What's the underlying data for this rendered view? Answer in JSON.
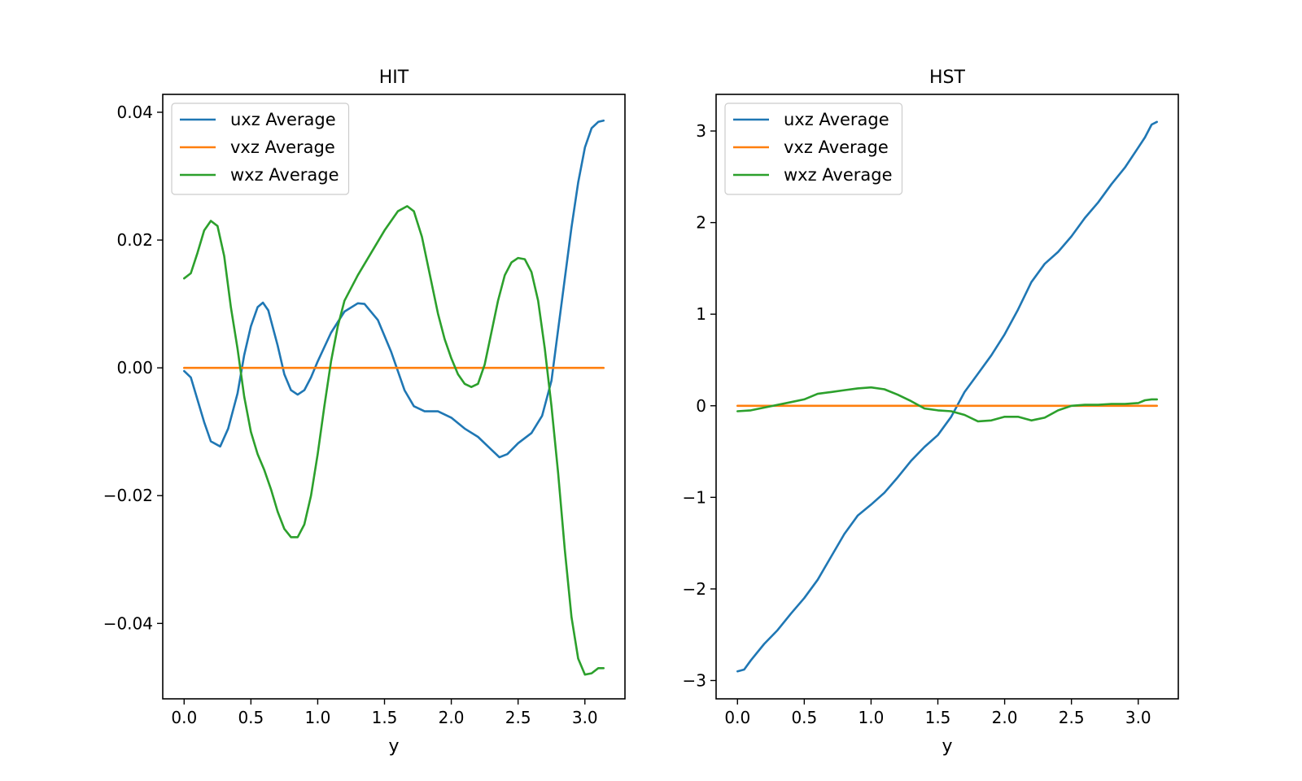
{
  "chart_data": [
    {
      "type": "line",
      "title": "HIT",
      "xlabel": "y",
      "ylabel": "",
      "xlim": [
        -0.16,
        3.3
      ],
      "ylim": [
        -0.0518,
        0.0428
      ],
      "xticks": [
        {
          "value": 0.0,
          "label": "0.0"
        },
        {
          "value": 0.5,
          "label": "0.5"
        },
        {
          "value": 1.0,
          "label": "1.0"
        },
        {
          "value": 1.5,
          "label": "1.5"
        },
        {
          "value": 2.0,
          "label": "2.0"
        },
        {
          "value": 2.5,
          "label": "2.5"
        },
        {
          "value": 3.0,
          "label": "3.0"
        }
      ],
      "yticks": [
        {
          "value": -0.04,
          "label": "−0.04"
        },
        {
          "value": -0.02,
          "label": "−0.02"
        },
        {
          "value": 0.0,
          "label": "0.00"
        },
        {
          "value": 0.02,
          "label": "0.02"
        },
        {
          "value": 0.04,
          "label": "0.04"
        }
      ],
      "legend_position": "top-left",
      "grid": false,
      "series": [
        {
          "name": "uxz Average",
          "color": "#1f77b4",
          "points": [
            [
              0.0,
              -0.0005
            ],
            [
              0.05,
              -0.0015
            ],
            [
              0.1,
              -0.005
            ],
            [
              0.15,
              -0.0085
            ],
            [
              0.2,
              -0.0115
            ],
            [
              0.27,
              -0.0123
            ],
            [
              0.33,
              -0.0095
            ],
            [
              0.4,
              -0.004
            ],
            [
              0.45,
              0.002
            ],
            [
              0.5,
              0.0065
            ],
            [
              0.55,
              0.0095
            ],
            [
              0.59,
              0.0102
            ],
            [
              0.63,
              0.009
            ],
            [
              0.7,
              0.0035
            ],
            [
              0.75,
              -0.001
            ],
            [
              0.8,
              -0.0035
            ],
            [
              0.85,
              -0.0042
            ],
            [
              0.9,
              -0.0035
            ],
            [
              0.95,
              -0.0015
            ],
            [
              1.0,
              0.001
            ],
            [
              1.1,
              0.0055
            ],
            [
              1.2,
              0.0088
            ],
            [
              1.3,
              0.0101
            ],
            [
              1.35,
              0.01
            ],
            [
              1.45,
              0.0075
            ],
            [
              1.55,
              0.0025
            ],
            [
              1.6,
              -0.0005
            ],
            [
              1.65,
              -0.0035
            ],
            [
              1.72,
              -0.006
            ],
            [
              1.8,
              -0.0068
            ],
            [
              1.9,
              -0.0068
            ],
            [
              2.0,
              -0.0078
            ],
            [
              2.1,
              -0.0095
            ],
            [
              2.2,
              -0.0108
            ],
            [
              2.3,
              -0.0128
            ],
            [
              2.36,
              -0.014
            ],
            [
              2.42,
              -0.0135
            ],
            [
              2.5,
              -0.0118
            ],
            [
              2.6,
              -0.0102
            ],
            [
              2.68,
              -0.0075
            ],
            [
              2.75,
              -0.002
            ],
            [
              2.8,
              0.006
            ],
            [
              2.85,
              0.014
            ],
            [
              2.9,
              0.022
            ],
            [
              2.95,
              0.029
            ],
            [
              3.0,
              0.0345
            ],
            [
              3.05,
              0.0375
            ],
            [
              3.1,
              0.0385
            ],
            [
              3.14,
              0.0387
            ]
          ]
        },
        {
          "name": "vxz Average",
          "color": "#ff7f0e",
          "points": [
            [
              0.0,
              0.0
            ],
            [
              3.14,
              0.0
            ]
          ]
        },
        {
          "name": "wxz Average",
          "color": "#2ca02c",
          "points": [
            [
              0.0,
              0.014
            ],
            [
              0.05,
              0.0148
            ],
            [
              0.1,
              0.018
            ],
            [
              0.15,
              0.0215
            ],
            [
              0.2,
              0.023
            ],
            [
              0.25,
              0.0222
            ],
            [
              0.3,
              0.0175
            ],
            [
              0.35,
              0.0095
            ],
            [
              0.4,
              0.003
            ],
            [
              0.45,
              -0.0045
            ],
            [
              0.5,
              -0.01
            ],
            [
              0.55,
              -0.0135
            ],
            [
              0.6,
              -0.016
            ],
            [
              0.65,
              -0.019
            ],
            [
              0.7,
              -0.0225
            ],
            [
              0.75,
              -0.0252
            ],
            [
              0.8,
              -0.0265
            ],
            [
              0.85,
              -0.0265
            ],
            [
              0.9,
              -0.0245
            ],
            [
              0.95,
              -0.02
            ],
            [
              1.0,
              -0.0135
            ],
            [
              1.05,
              -0.006
            ],
            [
              1.1,
              0.001
            ],
            [
              1.15,
              0.0065
            ],
            [
              1.2,
              0.0105
            ],
            [
              1.3,
              0.0145
            ],
            [
              1.4,
              0.018
            ],
            [
              1.5,
              0.0215
            ],
            [
              1.6,
              0.0245
            ],
            [
              1.67,
              0.0253
            ],
            [
              1.72,
              0.0245
            ],
            [
              1.78,
              0.0205
            ],
            [
              1.85,
              0.0135
            ],
            [
              1.9,
              0.0085
            ],
            [
              1.95,
              0.0045
            ],
            [
              2.0,
              0.0015
            ],
            [
              2.05,
              -0.001
            ],
            [
              2.1,
              -0.0025
            ],
            [
              2.15,
              -0.003
            ],
            [
              2.2,
              -0.0025
            ],
            [
              2.25,
              0.0005
            ],
            [
              2.3,
              0.0055
            ],
            [
              2.35,
              0.0105
            ],
            [
              2.4,
              0.0145
            ],
            [
              2.45,
              0.0165
            ],
            [
              2.5,
              0.0172
            ],
            [
              2.55,
              0.017
            ],
            [
              2.6,
              0.015
            ],
            [
              2.65,
              0.0105
            ],
            [
              2.7,
              0.003
            ],
            [
              2.75,
              -0.006
            ],
            [
              2.8,
              -0.0165
            ],
            [
              2.85,
              -0.0285
            ],
            [
              2.9,
              -0.039
            ],
            [
              2.95,
              -0.0455
            ],
            [
              3.0,
              -0.048
            ],
            [
              3.05,
              -0.0478
            ],
            [
              3.1,
              -0.047
            ],
            [
              3.14,
              -0.047
            ]
          ]
        }
      ]
    },
    {
      "type": "line",
      "title": "HST",
      "xlabel": "y",
      "ylabel": "",
      "xlim": [
        -0.16,
        3.3
      ],
      "ylim": [
        -3.2,
        3.4
      ],
      "xticks": [
        {
          "value": 0.0,
          "label": "0.0"
        },
        {
          "value": 0.5,
          "label": "0.5"
        },
        {
          "value": 1.0,
          "label": "1.0"
        },
        {
          "value": 1.5,
          "label": "1.5"
        },
        {
          "value": 2.0,
          "label": "2.0"
        },
        {
          "value": 2.5,
          "label": "2.5"
        },
        {
          "value": 3.0,
          "label": "3.0"
        }
      ],
      "yticks": [
        {
          "value": -3,
          "label": "−3"
        },
        {
          "value": -2,
          "label": "−2"
        },
        {
          "value": -1,
          "label": "−1"
        },
        {
          "value": 0,
          "label": "0"
        },
        {
          "value": 1,
          "label": "1"
        },
        {
          "value": 2,
          "label": "2"
        },
        {
          "value": 3,
          "label": "3"
        }
      ],
      "legend_position": "top-left",
      "grid": false,
      "series": [
        {
          "name": "uxz Average",
          "color": "#1f77b4",
          "points": [
            [
              0.0,
              -2.9
            ],
            [
              0.05,
              -2.88
            ],
            [
              0.1,
              -2.78
            ],
            [
              0.2,
              -2.6
            ],
            [
              0.3,
              -2.45
            ],
            [
              0.4,
              -2.27
            ],
            [
              0.5,
              -2.1
            ],
            [
              0.6,
              -1.9
            ],
            [
              0.7,
              -1.65
            ],
            [
              0.8,
              -1.4
            ],
            [
              0.9,
              -1.2
            ],
            [
              1.0,
              -1.08
            ],
            [
              1.1,
              -0.95
            ],
            [
              1.2,
              -0.78
            ],
            [
              1.3,
              -0.6
            ],
            [
              1.4,
              -0.45
            ],
            [
              1.5,
              -0.32
            ],
            [
              1.6,
              -0.12
            ],
            [
              1.7,
              0.15
            ],
            [
              1.8,
              0.35
            ],
            [
              1.9,
              0.55
            ],
            [
              2.0,
              0.78
            ],
            [
              2.1,
              1.05
            ],
            [
              2.2,
              1.35
            ],
            [
              2.3,
              1.55
            ],
            [
              2.4,
              1.68
            ],
            [
              2.5,
              1.85
            ],
            [
              2.6,
              2.05
            ],
            [
              2.7,
              2.22
            ],
            [
              2.8,
              2.42
            ],
            [
              2.9,
              2.6
            ],
            [
              3.0,
              2.82
            ],
            [
              3.05,
              2.93
            ],
            [
              3.1,
              3.07
            ],
            [
              3.14,
              3.1
            ]
          ]
        },
        {
          "name": "vxz Average",
          "color": "#ff7f0e",
          "points": [
            [
              0.0,
              0.0
            ],
            [
              3.14,
              0.0
            ]
          ]
        },
        {
          "name": "wxz Average",
          "color": "#2ca02c",
          "points": [
            [
              0.0,
              -0.06
            ],
            [
              0.1,
              -0.05
            ],
            [
              0.2,
              -0.02
            ],
            [
              0.3,
              0.01
            ],
            [
              0.4,
              0.04
            ],
            [
              0.5,
              0.07
            ],
            [
              0.6,
              0.13
            ],
            [
              0.7,
              0.15
            ],
            [
              0.8,
              0.17
            ],
            [
              0.9,
              0.19
            ],
            [
              1.0,
              0.2
            ],
            [
              1.1,
              0.18
            ],
            [
              1.2,
              0.12
            ],
            [
              1.3,
              0.05
            ],
            [
              1.4,
              -0.03
            ],
            [
              1.5,
              -0.05
            ],
            [
              1.6,
              -0.06
            ],
            [
              1.7,
              -0.1
            ],
            [
              1.8,
              -0.17
            ],
            [
              1.9,
              -0.16
            ],
            [
              2.0,
              -0.12
            ],
            [
              2.1,
              -0.12
            ],
            [
              2.2,
              -0.16
            ],
            [
              2.3,
              -0.13
            ],
            [
              2.4,
              -0.05
            ],
            [
              2.5,
              0.0
            ],
            [
              2.6,
              0.01
            ],
            [
              2.7,
              0.01
            ],
            [
              2.8,
              0.02
            ],
            [
              2.9,
              0.02
            ],
            [
              3.0,
              0.03
            ],
            [
              3.05,
              0.06
            ],
            [
              3.1,
              0.07
            ],
            [
              3.14,
              0.07
            ]
          ]
        }
      ]
    }
  ]
}
